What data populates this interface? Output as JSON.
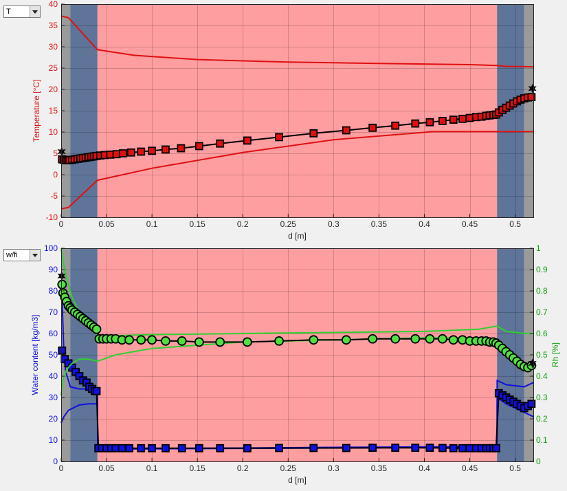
{
  "selectors": {
    "top": {
      "value": "T"
    },
    "bottom": {
      "value": "w/fi"
    }
  },
  "chart_data": [
    {
      "type": "line",
      "xlabel": "d [m]",
      "ylabel": "Temperature [°C]",
      "xlim": [
        0,
        0.52
      ],
      "ylim": [
        -10,
        40
      ],
      "xticks": [
        "0",
        "0.05",
        "0.1",
        "0.15",
        "0.2",
        "0.25",
        "0.3",
        "0.35",
        "0.4",
        "0.45",
        "0.5"
      ],
      "yticks": [
        "-10",
        "-5",
        "0",
        "5",
        "10",
        "15",
        "20",
        "25",
        "30",
        "35",
        "40"
      ],
      "grid": true,
      "layers": [
        {
          "from": 0,
          "to": 0.01,
          "color": "#9a9a9a"
        },
        {
          "from": 0.01,
          "to": 0.04,
          "color": "#5e7499"
        },
        {
          "from": 0.04,
          "to": 0.48,
          "color": "#ff9ea1"
        },
        {
          "from": 0.48,
          "to": 0.51,
          "color": "#5e7499"
        },
        {
          "from": 0.51,
          "to": 0.52,
          "color": "#9a9a9a"
        }
      ],
      "series": [
        {
          "color": "#e01010",
          "style": "line",
          "x": [
            0,
            0.008,
            0.04,
            0.08,
            0.15,
            0.25,
            0.35,
            0.45,
            0.48,
            0.49,
            0.52
          ],
          "y": [
            37.2,
            36.8,
            29.3,
            28.0,
            27.0,
            26.4,
            26.1,
            25.8,
            25.6,
            25.4,
            25.3
          ]
        },
        {
          "color": "#e01010",
          "style": "line",
          "x": [
            0,
            0.008,
            0.04,
            0.1,
            0.2,
            0.3,
            0.41,
            0.45,
            0.48,
            0.52
          ],
          "y": [
            -8.0,
            -7.7,
            -1.3,
            1.5,
            5.2,
            8.2,
            10.1,
            10.1,
            10.1,
            10.1
          ]
        },
        {
          "color": "#000000",
          "style": "line-markers",
          "marker": "square",
          "markerColor": "#e01010",
          "x": [
            0.001,
            0.003,
            0.005,
            0.007,
            0.009,
            0.012,
            0.015,
            0.018,
            0.021,
            0.024,
            0.027,
            0.03,
            0.033,
            0.036,
            0.039,
            0.043,
            0.048,
            0.054,
            0.061,
            0.068,
            0.077,
            0.088,
            0.1,
            0.115,
            0.132,
            0.152,
            0.175,
            0.205,
            0.24,
            0.278,
            0.314,
            0.343,
            0.368,
            0.39,
            0.406,
            0.42,
            0.432,
            0.442,
            0.45,
            0.457,
            0.463,
            0.468,
            0.472,
            0.476,
            0.479,
            0.482,
            0.486,
            0.49,
            0.494,
            0.498,
            0.502,
            0.506,
            0.51,
            0.514,
            0.518
          ],
          "y": [
            3.6,
            3.5,
            3.4,
            3.4,
            3.4,
            3.5,
            3.6,
            3.7,
            3.8,
            3.9,
            4.0,
            4.1,
            4.2,
            4.3,
            4.4,
            4.5,
            4.6,
            4.7,
            4.8,
            5.0,
            5.2,
            5.4,
            5.6,
            5.9,
            6.2,
            6.7,
            7.3,
            8.0,
            8.8,
            9.7,
            10.4,
            11.0,
            11.5,
            12.0,
            12.3,
            12.6,
            12.9,
            13.1,
            13.3,
            13.5,
            13.6,
            13.8,
            13.9,
            14.0,
            14.1,
            14.6,
            15.2,
            15.7,
            16.2,
            16.7,
            17.2,
            17.6,
            17.9,
            18.1,
            18.2
          ]
        },
        {
          "color": "#000000",
          "style": "markers",
          "marker": "star",
          "x": [
            0.0005,
            0.519
          ],
          "y": [
            5.4,
            20.2
          ]
        }
      ]
    },
    {
      "type": "line",
      "xlabel": "d [m]",
      "ylabel": "Water content [kg/m3]",
      "y2label": "Rh [%]",
      "xlim": [
        0,
        0.52
      ],
      "ylim": [
        0,
        100
      ],
      "y2lim": [
        0,
        1
      ],
      "xticks": [
        "0",
        "0.05",
        "0.1",
        "0.15",
        "0.2",
        "0.25",
        "0.3",
        "0.35",
        "0.4",
        "0.45",
        "0.5"
      ],
      "yticks": [
        "0",
        "10",
        "20",
        "30",
        "40",
        "50",
        "60",
        "70",
        "80",
        "90",
        "100"
      ],
      "y2ticks": [
        "0",
        "0.1",
        "0.2",
        "0.3",
        "0.4",
        "0.5",
        "0.6",
        "0.7",
        "0.8",
        "0.9",
        "1"
      ],
      "grid": true,
      "layers": [
        {
          "from": 0,
          "to": 0.01,
          "color": "#9a9a9a"
        },
        {
          "from": 0.01,
          "to": 0.04,
          "color": "#5e7499"
        },
        {
          "from": 0.04,
          "to": 0.48,
          "color": "#ff9ea1"
        },
        {
          "from": 0.48,
          "to": 0.51,
          "color": "#5e7499"
        },
        {
          "from": 0.51,
          "to": 0.52,
          "color": "#9a9a9a"
        }
      ],
      "series": [
        {
          "axis": "left",
          "color": "#1010e0",
          "style": "line",
          "x": [
            0,
            0.0015,
            0.003,
            0.005,
            0.008,
            0.01,
            0.02,
            0.03,
            0.038,
            0.04,
            0.0402,
            0.1,
            0.2,
            0.3,
            0.4,
            0.48,
            0.4802,
            0.49,
            0.51,
            0.52
          ],
          "y": [
            85,
            70,
            50,
            42,
            38,
            35,
            34,
            34,
            33,
            33,
            5.8,
            5.9,
            6.1,
            6.3,
            6.5,
            6.5,
            38,
            36,
            35,
            37
          ]
        },
        {
          "axis": "left",
          "color": "#1010e0",
          "style": "line",
          "x": [
            0,
            0.003,
            0.008,
            0.02,
            0.03,
            0.038,
            0.04,
            0.0402,
            0.1,
            0.2,
            0.3,
            0.4,
            0.48,
            0.4802,
            0.49,
            0.51,
            0.52
          ],
          "y": [
            18,
            21,
            24,
            26.5,
            27,
            27,
            27,
            6.0,
            6.0,
            6.3,
            6.6,
            6.8,
            7.0,
            30,
            27,
            23,
            21
          ]
        },
        {
          "axis": "left",
          "color": "#000000",
          "style": "line-markers",
          "marker": "square",
          "markerColor": "#1010e0",
          "x": [
            0.001,
            0.004,
            0.008,
            0.012,
            0.016,
            0.02,
            0.024,
            0.028,
            0.031,
            0.034,
            0.037,
            0.039,
            0.041,
            0.045,
            0.05,
            0.055,
            0.06,
            0.067,
            0.075,
            0.088,
            0.1,
            0.115,
            0.133,
            0.152,
            0.175,
            0.205,
            0.24,
            0.278,
            0.314,
            0.343,
            0.368,
            0.39,
            0.406,
            0.42,
            0.432,
            0.442,
            0.45,
            0.457,
            0.463,
            0.468,
            0.472,
            0.476,
            0.479,
            0.482,
            0.486,
            0.49,
            0.494,
            0.498,
            0.502,
            0.506,
            0.51,
            0.514,
            0.518
          ],
          "y": [
            52,
            48,
            46,
            44,
            42,
            40,
            38,
            37,
            35,
            34,
            33,
            33,
            6.2,
            6.2,
            6.2,
            6.2,
            6.2,
            6.2,
            6.2,
            6.2,
            6.2,
            6.2,
            6.2,
            6.2,
            6.2,
            6.2,
            6.3,
            6.3,
            6.3,
            6.4,
            6.4,
            6.4,
            6.4,
            6.3,
            6.2,
            6.2,
            6.2,
            6.2,
            6.2,
            6.2,
            6.2,
            6.2,
            6.2,
            32,
            31,
            30,
            29,
            28,
            27,
            26,
            25,
            26,
            27
          ]
        },
        {
          "axis": "left",
          "color": "#000000",
          "style": "markers",
          "marker": "star",
          "x": [
            0.0005
          ],
          "y": [
            87
          ]
        },
        {
          "axis": "right",
          "color": "#30d030",
          "style": "line",
          "x": [
            0,
            0.002,
            0.006,
            0.012,
            0.02,
            0.03,
            0.04,
            0.06,
            0.1,
            0.2,
            0.3,
            0.4,
            0.46,
            0.48,
            0.49,
            0.51,
            0.52
          ],
          "y": [
            0.31,
            0.38,
            0.43,
            0.46,
            0.48,
            0.48,
            0.47,
            0.5,
            0.53,
            0.56,
            0.57,
            0.58,
            0.58,
            0.57,
            0.52,
            0.44,
            0.43
          ]
        },
        {
          "axis": "right",
          "color": "#30d030",
          "style": "line",
          "x": [
            0,
            0.002,
            0.006,
            0.012,
            0.02,
            0.03,
            0.04,
            0.06,
            0.1,
            0.2,
            0.3,
            0.4,
            0.46,
            0.48,
            0.49,
            0.51,
            0.52
          ],
          "y": [
            1.0,
            0.94,
            0.86,
            0.77,
            0.7,
            0.64,
            0.59,
            0.59,
            0.595,
            0.6,
            0.605,
            0.61,
            0.62,
            0.635,
            0.61,
            0.6,
            0.6
          ]
        },
        {
          "axis": "right",
          "color": "#000000",
          "style": "line-markers",
          "marker": "circle",
          "markerColor": "#50e040",
          "x": [
            0.001,
            0.002,
            0.004,
            0.006,
            0.008,
            0.01,
            0.012,
            0.015,
            0.018,
            0.021,
            0.024,
            0.027,
            0.03,
            0.033,
            0.036,
            0.039,
            0.042,
            0.046,
            0.05,
            0.055,
            0.06,
            0.067,
            0.075,
            0.088,
            0.1,
            0.115,
            0.133,
            0.152,
            0.175,
            0.205,
            0.24,
            0.278,
            0.314,
            0.343,
            0.368,
            0.39,
            0.406,
            0.42,
            0.432,
            0.442,
            0.45,
            0.457,
            0.463,
            0.468,
            0.472,
            0.476,
            0.479,
            0.482,
            0.486,
            0.49,
            0.494,
            0.498,
            0.502,
            0.506,
            0.51,
            0.514,
            0.518
          ],
          "y": [
            0.83,
            0.79,
            0.77,
            0.75,
            0.73,
            0.72,
            0.71,
            0.7,
            0.69,
            0.68,
            0.67,
            0.66,
            0.65,
            0.64,
            0.63,
            0.62,
            0.575,
            0.575,
            0.575,
            0.575,
            0.575,
            0.57,
            0.57,
            0.57,
            0.57,
            0.565,
            0.565,
            0.56,
            0.56,
            0.56,
            0.565,
            0.57,
            0.57,
            0.575,
            0.575,
            0.575,
            0.575,
            0.575,
            0.57,
            0.57,
            0.565,
            0.565,
            0.565,
            0.565,
            0.56,
            0.56,
            0.555,
            0.545,
            0.53,
            0.515,
            0.5,
            0.485,
            0.47,
            0.455,
            0.445,
            0.44,
            0.45
          ]
        },
        {
          "axis": "right",
          "color": "#000000",
          "style": "markers",
          "marker": "star",
          "x": [
            0.519
          ],
          "y": [
            0.46
          ]
        }
      ]
    }
  ]
}
